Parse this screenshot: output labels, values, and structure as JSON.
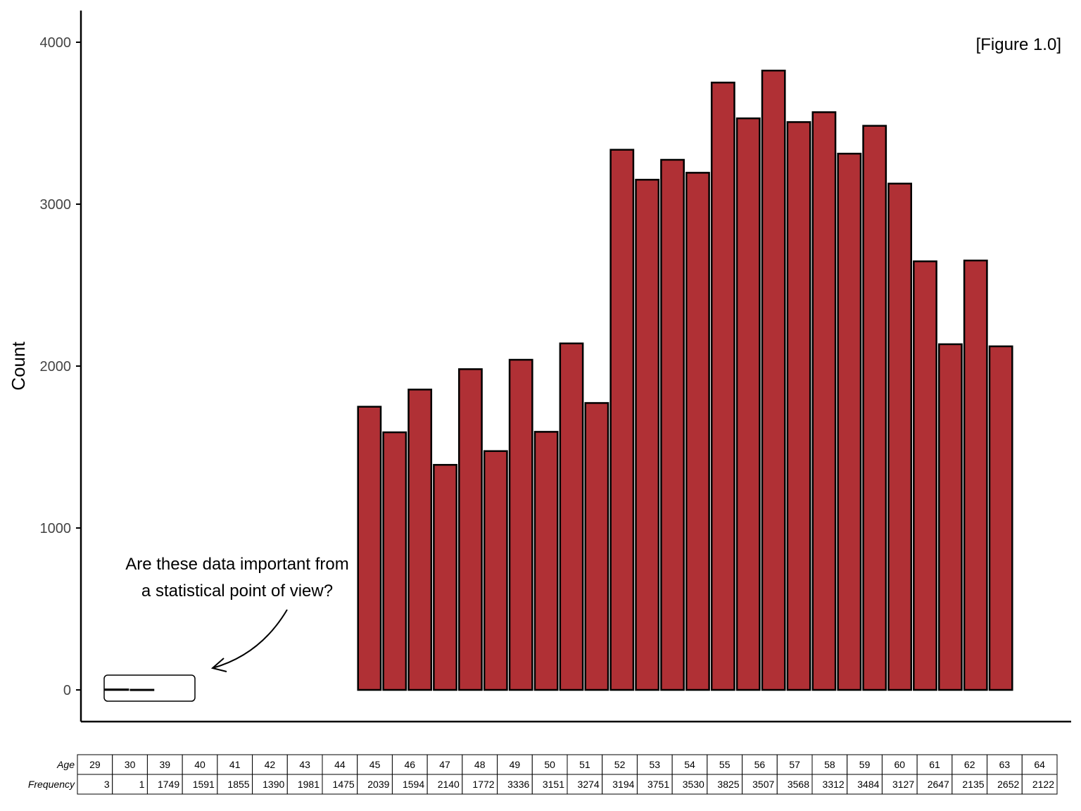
{
  "chart_data": {
    "type": "bar",
    "figure_label": "[Figure 1.0]",
    "ylabel": "Count",
    "xlabel": "",
    "ylim": [
      0,
      4000
    ],
    "yticks": [
      0,
      1000,
      2000,
      3000,
      4000
    ],
    "categories": [
      29,
      30,
      39,
      40,
      41,
      42,
      43,
      44,
      45,
      46,
      47,
      48,
      49,
      50,
      51,
      52,
      53,
      54,
      55,
      56,
      57,
      58,
      59,
      60,
      61,
      62,
      63,
      64
    ],
    "values": [
      3,
      1,
      1749,
      1591,
      1855,
      1390,
      1981,
      1475,
      2039,
      1594,
      2140,
      1772,
      3336,
      3151,
      3274,
      3194,
      3751,
      3530,
      3825,
      3507,
      3568,
      3312,
      3484,
      3127,
      2647,
      2135,
      2652,
      2122
    ],
    "bar_color": "#B03035",
    "grid": false,
    "annotation": {
      "lines": [
        "Are these data important from",
        "a statistical point of view?"
      ]
    },
    "table": {
      "row_labels": [
        "Age",
        "Frequency"
      ]
    }
  }
}
